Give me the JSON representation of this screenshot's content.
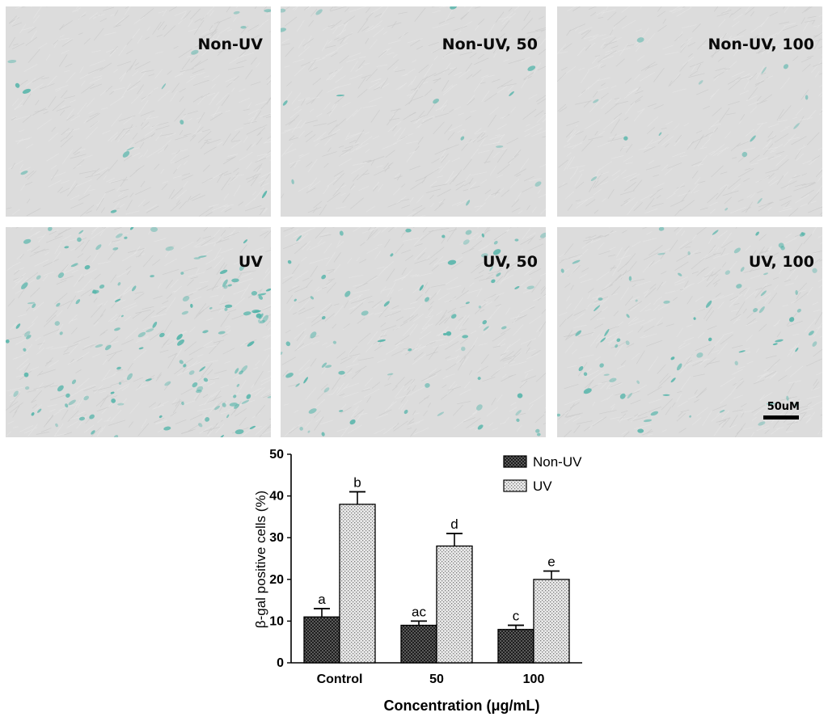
{
  "panels": [
    {
      "label": "Non-UV",
      "stain": "low"
    },
    {
      "label": "Non-UV, 50",
      "stain": "low"
    },
    {
      "label": "Non-UV, 100",
      "stain": "low"
    },
    {
      "label": "UV",
      "stain": "high"
    },
    {
      "label": "UV, 50",
      "stain": "medium"
    },
    {
      "label": "UV, 100",
      "stain": "medium"
    }
  ],
  "scale_bar_label": "50uM",
  "colors": {
    "panel_bg": "#dcdcdc",
    "stain": "#4fb3a8",
    "bar_dark": "#404040",
    "bar_light": "#d9d9d9"
  },
  "chart_data": {
    "type": "bar",
    "categories": [
      "Control",
      "50",
      "100"
    ],
    "series": [
      {
        "name": "Non-UV",
        "values": [
          11,
          9,
          8
        ],
        "errors": [
          2,
          1,
          1
        ],
        "letters": [
          "a",
          "ac",
          "c"
        ],
        "pattern": "crosshatch"
      },
      {
        "name": "UV",
        "values": [
          38,
          28,
          20
        ],
        "errors": [
          3,
          3,
          2
        ],
        "letters": [
          "b",
          "d",
          "e"
        ],
        "pattern": "dotted"
      }
    ],
    "xlabel": "Concentration (μg/mL)",
    "ylabel": "β-gal positive cells (%)",
    "ylim": [
      0,
      50
    ],
    "yticks": [
      0,
      10,
      20,
      30,
      40,
      50
    ],
    "legend_position": "top-right",
    "grid": false
  }
}
